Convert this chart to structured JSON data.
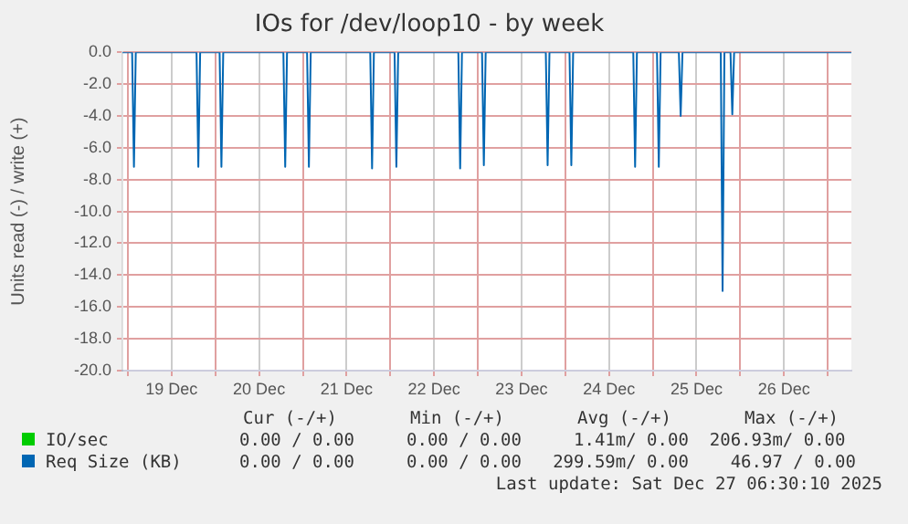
{
  "chart_data": {
    "type": "line",
    "title": "IOs for /dev/loop10 - by week",
    "ylabel": "Units read (-) / write (+)",
    "xlim": [
      "2025-12-18T22:30",
      "2025-12-27T06:30"
    ],
    "xticks": [
      {
        "value": "2025-12-19T00:00",
        "label": null
      },
      {
        "value": "2025-12-19T12:00",
        "label": "19 Dec"
      },
      {
        "value": "2025-12-20T00:00",
        "label": null
      },
      {
        "value": "2025-12-20T12:00",
        "label": "20 Dec"
      },
      {
        "value": "2025-12-21T00:00",
        "label": null
      },
      {
        "value": "2025-12-21T12:00",
        "label": "21 Dec"
      },
      {
        "value": "2025-12-22T00:00",
        "label": null
      },
      {
        "value": "2025-12-22T12:00",
        "label": "22 Dec"
      },
      {
        "value": "2025-12-23T00:00",
        "label": null
      },
      {
        "value": "2025-12-23T12:00",
        "label": "23 Dec"
      },
      {
        "value": "2025-12-24T00:00",
        "label": null
      },
      {
        "value": "2025-12-24T12:00",
        "label": "24 Dec"
      },
      {
        "value": "2025-12-25T00:00",
        "label": null
      },
      {
        "value": "2025-12-25T12:00",
        "label": "25 Dec"
      },
      {
        "value": "2025-12-26T00:00",
        "label": null
      },
      {
        "value": "2025-12-26T12:00",
        "label": "26 Dec"
      },
      {
        "value": "2025-12-27T00:00",
        "label": null
      }
    ],
    "ylim": [
      -20,
      0
    ],
    "yticks": [
      {
        "value": 0,
        "label": "0.0"
      },
      {
        "value": -2,
        "label": "-2.0"
      },
      {
        "value": -4,
        "label": "-4.0"
      },
      {
        "value": -6,
        "label": "-6.0"
      },
      {
        "value": -8,
        "label": "-8.0"
      },
      {
        "value": -10,
        "label": "-10.0"
      },
      {
        "value": -12,
        "label": "-12.0"
      },
      {
        "value": -14,
        "label": "-14.0"
      },
      {
        "value": -16,
        "label": "-16.0"
      },
      {
        "value": -18,
        "label": "-18.0"
      },
      {
        "value": -20,
        "label": "-20.0"
      }
    ],
    "grid": true,
    "legend": "bottom",
    "series": [
      {
        "name": "IO/sec",
        "color": "#00cc00"
      },
      {
        "name": "Req Size (KB)",
        "color": "#0066b3",
        "x": [
          "2025-12-18T22:30",
          "2025-12-19T01:10",
          "2025-12-19T01:40",
          "2025-12-19T02:10",
          "2025-12-19T18:50",
          "2025-12-19T19:20",
          "2025-12-19T19:50",
          "2025-12-20T01:10",
          "2025-12-20T01:40",
          "2025-12-20T02:10",
          "2025-12-20T18:40",
          "2025-12-20T19:10",
          "2025-12-20T19:40",
          "2025-12-21T01:10",
          "2025-12-21T01:40",
          "2025-12-21T02:10",
          "2025-12-21T18:30",
          "2025-12-21T19:00",
          "2025-12-21T19:30",
          "2025-12-22T01:10",
          "2025-12-22T01:40",
          "2025-12-22T02:10",
          "2025-12-22T18:40",
          "2025-12-22T19:10",
          "2025-12-22T19:40",
          "2025-12-23T01:10",
          "2025-12-23T01:40",
          "2025-12-23T02:10",
          "2025-12-23T18:40",
          "2025-12-23T19:10",
          "2025-12-23T19:40",
          "2025-12-24T01:10",
          "2025-12-24T01:40",
          "2025-12-24T02:10",
          "2025-12-24T18:40",
          "2025-12-24T19:10",
          "2025-12-24T19:40",
          "2025-12-25T01:10",
          "2025-12-25T01:40",
          "2025-12-25T02:10",
          "2025-12-25T07:10",
          "2025-12-25T07:40",
          "2025-12-25T08:10",
          "2025-12-25T18:40",
          "2025-12-25T19:10",
          "2025-12-25T19:40",
          "2025-12-25T21:20",
          "2025-12-25T21:50",
          "2025-12-25T22:20",
          "2025-12-27T06:30"
        ],
        "values": [
          0,
          0,
          -7.2,
          0,
          0,
          -7.2,
          0,
          0,
          -7.2,
          0,
          0,
          -7.2,
          0,
          0,
          -7.2,
          0,
          0,
          -7.3,
          0,
          0,
          -7.2,
          0,
          0,
          -7.3,
          0,
          0,
          -7.1,
          0,
          0,
          -7.1,
          0,
          0,
          -7.1,
          0,
          0,
          -7.2,
          0,
          0,
          -7.2,
          0,
          0,
          -4.0,
          0,
          0,
          -15.0,
          0,
          0,
          -3.9,
          0,
          0
        ]
      }
    ],
    "annotations": [
      "Cur (-/+)       Min (-/+)       Avg (-/+)       Max (-/+)",
      "0.00 / 0.00     0.00 / 0.00     1.41m/ 0.00  206.93m/ 0.00",
      "0.00 / 0.00     0.00 / 0.00   299.59m/ 0.00    46.97 / 0.00",
      "Last update: Sat Dec 27 06:30:10 2025"
    ]
  }
}
